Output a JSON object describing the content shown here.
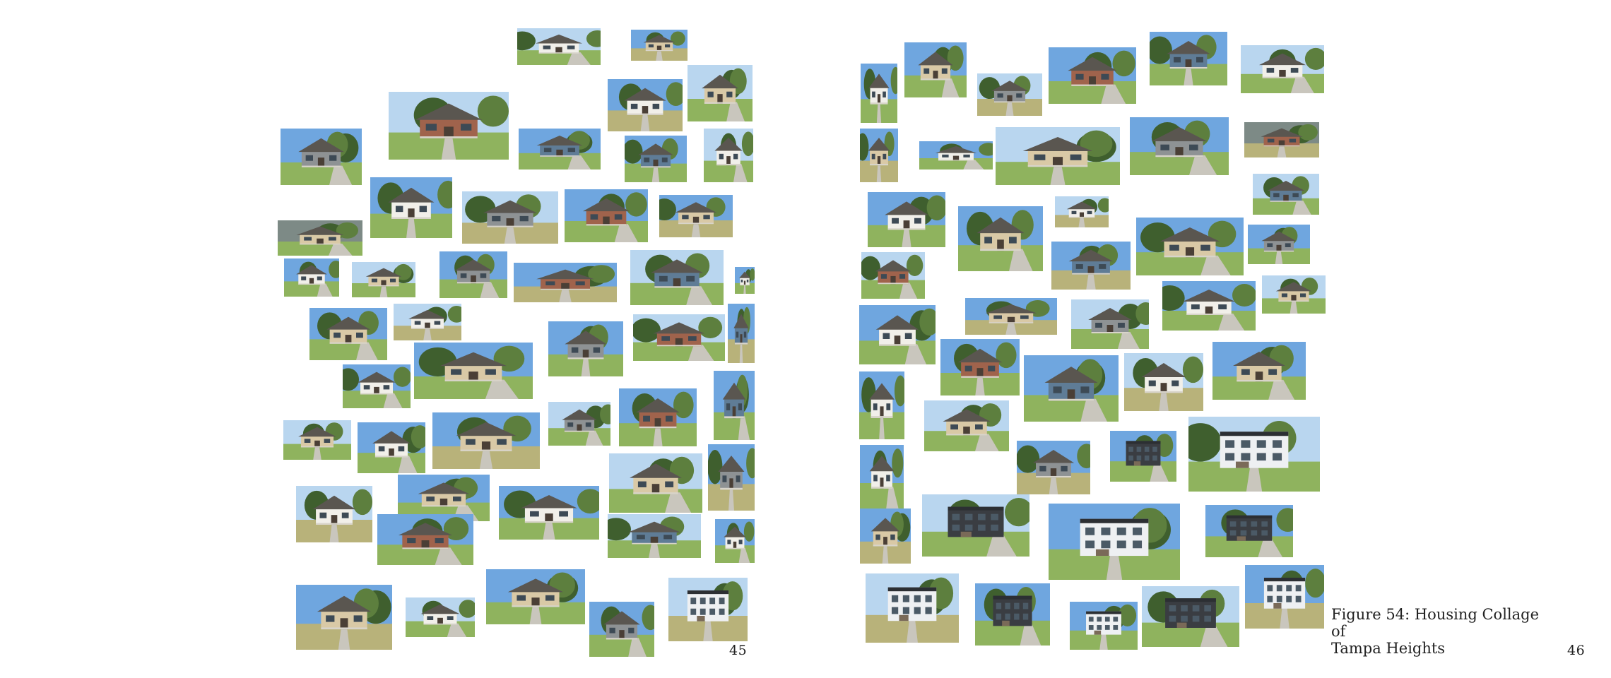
{
  "document": {
    "left_page": {
      "page_number": "45"
    },
    "right_page": {
      "page_number": "46",
      "caption": {
        "line1": "Figure 54: Housing Collage of",
        "line2": "Tampa Heights"
      }
    }
  },
  "palette": {
    "sky_blue": "#6fa6df",
    "sky_light": "#b9d6ef",
    "tree_dark": "#3f5f2e",
    "tree_mid": "#5d7f3e",
    "lawn": "#8fb35e",
    "lawn_dry": "#b8b27a",
    "pavement": "#c9c6bd",
    "house_white": "#f1efe9",
    "house_beige": "#d9c9a6",
    "house_grey": "#8e9294",
    "house_brick": "#a0634c",
    "house_blue": "#5f7c96",
    "roof_dark": "#5a5650",
    "modern_white": "#eef0f2",
    "modern_dark": "#3a3d42"
  }
}
